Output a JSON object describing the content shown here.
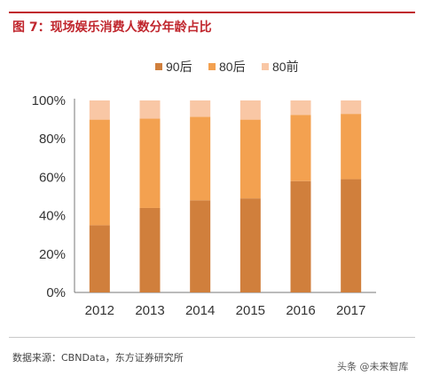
{
  "header": {
    "title": "图 7：现场娱乐消费人数分年龄占比"
  },
  "chart_data": {
    "type": "bar",
    "stacked": true,
    "categories": [
      "2012",
      "2013",
      "2014",
      "2015",
      "2016",
      "2017"
    ],
    "series": [
      {
        "name": "90后",
        "values": [
          35,
          44,
          48,
          49,
          58,
          59
        ],
        "color": "#d07f3c"
      },
      {
        "name": "80后",
        "values": [
          55,
          46.5,
          43.5,
          41,
          34.5,
          34
        ],
        "color": "#f3a150"
      },
      {
        "name": "80前",
        "values": [
          10,
          9.5,
          8.5,
          10,
          7.5,
          7
        ],
        "color": "#f9c7a5"
      }
    ],
    "ylim": [
      0,
      100
    ],
    "yticks": [
      "0%",
      "20%",
      "40%",
      "60%",
      "80%",
      "100%"
    ],
    "legend_position": "top-center",
    "grid": false
  },
  "footer": {
    "source": "数据来源：CBNData，东方证券研究所",
    "watermark": "头条 @未来智库"
  }
}
